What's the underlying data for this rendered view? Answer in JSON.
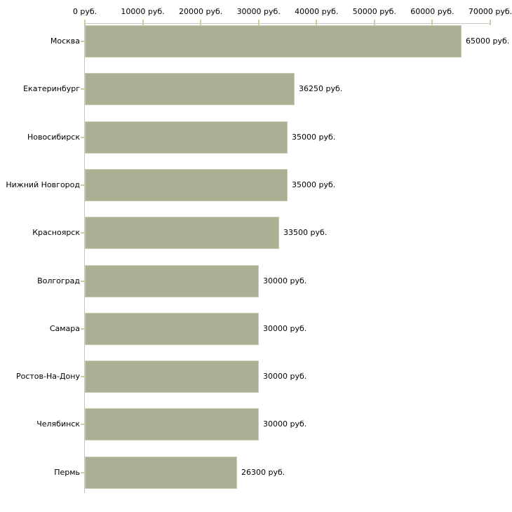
{
  "chart_data": {
    "type": "bar",
    "orientation": "horizontal",
    "title": "",
    "xlabel": "",
    "ylabel": "",
    "xlim": [
      0,
      70000
    ],
    "grid": false,
    "legend": false,
    "unit_suffix": " руб.",
    "x_tick_values": [
      0,
      10000,
      20000,
      30000,
      40000,
      50000,
      60000,
      70000
    ],
    "x_tick_labels": [
      "0 руб.",
      "10000 руб.",
      "20000 руб.",
      "30000 руб.",
      "40000 руб.",
      "50000 руб.",
      "60000 руб.",
      "70000 руб."
    ],
    "categories": [
      "Москва",
      "Екатеринбург",
      "Новосибирск",
      "Нижний Новгород",
      "Красноярск",
      "Волгоград",
      "Самара",
      "Ростов-На-Дону",
      "Челябинск",
      "Пермь"
    ],
    "values": [
      65000,
      36250,
      35000,
      35000,
      33500,
      30000,
      30000,
      30000,
      30000,
      26300
    ],
    "value_labels": [
      "65000 руб.",
      "36250 руб.",
      "35000 руб.",
      "35000 руб.",
      "33500 руб.",
      "30000 руб.",
      "30000 руб.",
      "30000 руб.",
      "30000 руб.",
      "26300 руб."
    ],
    "colors": {
      "bar_fill": "#aab094",
      "bar_border": "#c9cdb2",
      "axis_line": "#c6c6c6",
      "tick_mark": "#cdcd9f",
      "text": "#000000",
      "background": "#ffffff"
    }
  }
}
